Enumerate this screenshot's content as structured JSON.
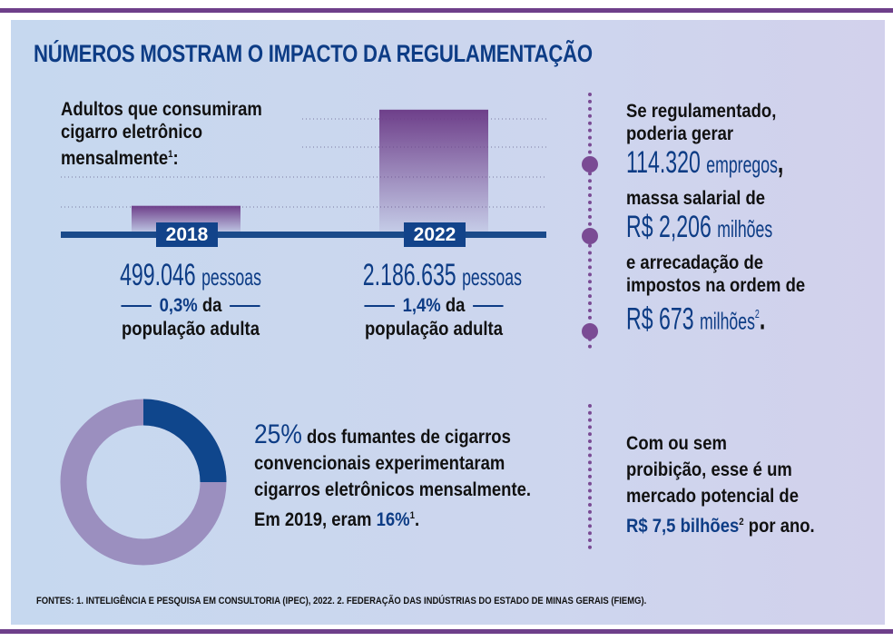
{
  "title": "NÚMEROS MOSTRAM O IMPACTO DA REGULAMENTAÇÃO",
  "bars": {
    "heading": [
      "Adultos que consumiram",
      "cigarro eletrônico",
      "mensalmente"
    ],
    "heading_sup": "1",
    "heading_end": ":",
    "items": [
      {
        "year": "2018",
        "count": "499.046",
        "unit": "pessoas",
        "pct": "0,3%",
        "pct_suffix": "da",
        "pop": "população adulta"
      },
      {
        "year": "2022",
        "count": "2.186.635",
        "unit": "pessoas",
        "pct": "1,4%",
        "pct_suffix": "da",
        "pop": "população adulta"
      }
    ]
  },
  "right_top": {
    "l1": "Se regulamentado,",
    "l2": "poderia gerar",
    "v1": "114.320",
    "v1_unit": "empregos",
    "v1_end": ",",
    "l3": "massa salarial de",
    "v2": "R$ 2,206",
    "v2_unit": "milhões",
    "l4": "e arrecadação de",
    "l5": "impostos na ordem de",
    "v3": "R$ 673",
    "v3_unit": "milhões",
    "v3_sup": "2",
    "v3_end": "."
  },
  "donut_text": {
    "pct": "25%",
    "t1": " dos fumantes de cigarros",
    "t2": "convencionais experimentaram",
    "t3": "cigarros eletrônicos mensalmente.",
    "t4": "Em 2019, eram ",
    "v": "16%",
    "sup": "1",
    "end": "."
  },
  "right_bottom": {
    "l1": "Com ou sem",
    "l2": "proibição, esse é um",
    "l3": "mercado potencial de",
    "v": "R$ 7,5 bilhões",
    "sup": "2",
    "end": " por ano."
  },
  "footer": "FONTES: 1. INTELIGÊNCIA E PESQUISA EM CONSULTORIA (IPEC), 2022. 2. FEDERAÇÃO DAS INDÚSTRIAS DO ESTADO DE MINAS GERAIS (FIEMG).",
  "colors": {
    "blue": "#0d3c85",
    "purple": "#7a4b94",
    "donut_rest": "#9b8fbf"
  },
  "chart_data": [
    {
      "type": "bar",
      "categories": [
        "2018",
        "2022"
      ],
      "values": [
        499046,
        2186635
      ],
      "ylim": [
        0,
        2400000
      ],
      "grid": true
    },
    {
      "type": "pie",
      "donut": true,
      "values": [
        25,
        75
      ],
      "colors": [
        "#0f468c",
        "#9b8fbf"
      ]
    }
  ]
}
